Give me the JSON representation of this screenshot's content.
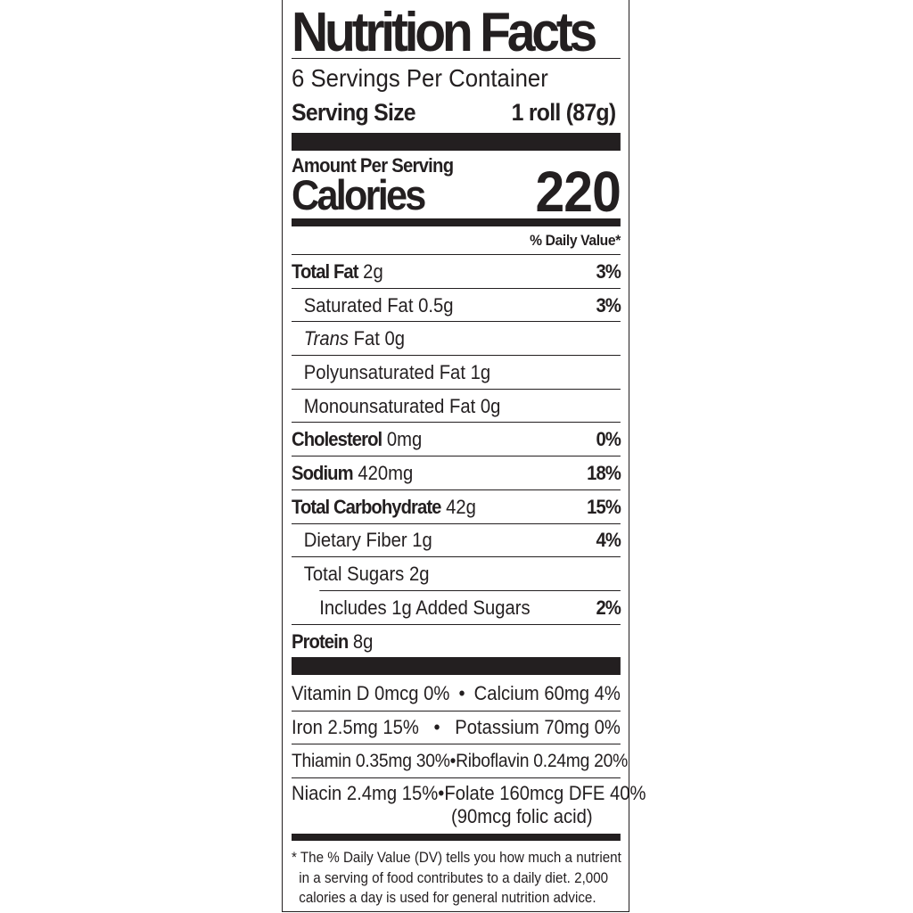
{
  "label": {
    "title": "Nutrition Facts",
    "servings_per_container": "6 Servings Per Container",
    "serving_size_label": "Serving Size",
    "serving_size_value": "1 roll (87g)",
    "amount_per_serving": "Amount Per Serving",
    "calories_label": "Calories",
    "calories_value": "220",
    "daily_value_header": "% Daily Value*"
  },
  "nutrients": [
    {
      "name": "Total Fat",
      "amount": "2g",
      "dv": "3%"
    },
    {
      "name": "Saturated Fat",
      "amount": "0.5g",
      "dv": "3%"
    },
    {
      "name": "Trans",
      "amount": "Fat 0g",
      "dv": ""
    },
    {
      "name": "Polyunsaturated Fat",
      "amount": "1g",
      "dv": ""
    },
    {
      "name": "Monounsaturated Fat",
      "amount": "0g",
      "dv": ""
    },
    {
      "name": "Cholesterol",
      "amount": "0mg",
      "dv": "0%"
    },
    {
      "name": "Sodium",
      "amount": "420mg",
      "dv": "18%"
    },
    {
      "name": "Total Carbohydrate",
      "amount": "42g",
      "dv": "15%"
    },
    {
      "name": "Dietary Fiber",
      "amount": "1g",
      "dv": "4%"
    },
    {
      "name": "Total Sugars",
      "amount": "2g",
      "dv": ""
    },
    {
      "name": "Includes 1g Added Sugars",
      "amount": "",
      "dv": "2%"
    },
    {
      "name": "Protein",
      "amount": "8g",
      "dv": ""
    }
  ],
  "vitamins": [
    {
      "left": "Vitamin D 0mcg 0%",
      "sep": "•",
      "right": "Calcium 60mg 4%"
    },
    {
      "left": "Iron 2.5mg 15%",
      "sep": "•",
      "right": "Potassium 70mg 0%"
    },
    {
      "left": "Thiamin 0.35mg 30%",
      "sep": "•",
      "right": "Riboflavin 0.24mg 20%"
    },
    {
      "left": "Niacin 2.4mg 15%",
      "sep": "•",
      "right": "Folate 160mcg DFE 40%",
      "note": "(90mcg folic acid)"
    }
  ],
  "footnote": [
    "* The % Daily Value (DV) tells you how much a nutrient",
    "in a serving of food contributes to a daily diet. 2,000",
    "calories a day is used for general nutrition advice."
  ]
}
